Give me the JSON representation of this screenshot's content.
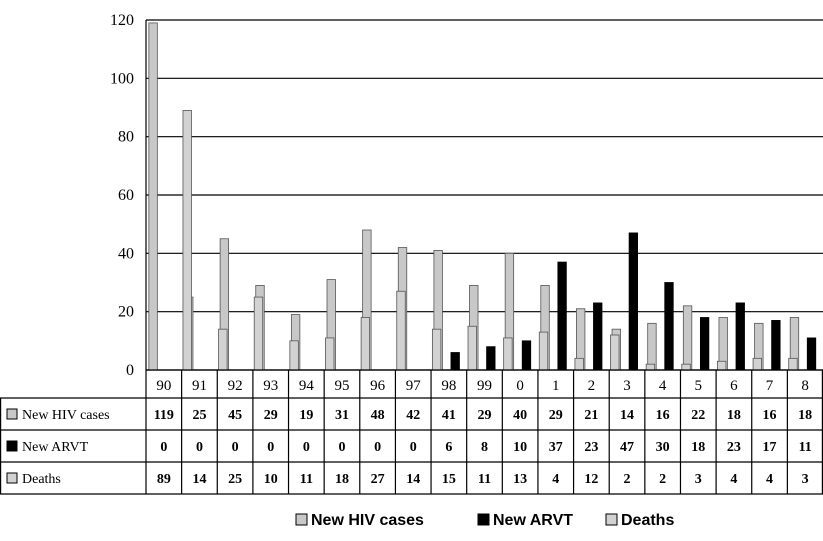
{
  "chart_data": {
    "type": "bar",
    "categories": [
      "90",
      "91",
      "92",
      "93",
      "94",
      "95",
      "96",
      "97",
      "98",
      "99",
      "0",
      "1",
      "2",
      "3",
      "4",
      "5",
      "6",
      "7",
      "8"
    ],
    "series": [
      {
        "name": "New HIV cases",
        "values": [
          119,
          25,
          45,
          29,
          19,
          31,
          48,
          42,
          41,
          29,
          40,
          29,
          21,
          14,
          16,
          22,
          18,
          16,
          18
        ]
      },
      {
        "name": "New ARVT",
        "values": [
          0,
          0,
          0,
          0,
          0,
          0,
          0,
          0,
          6,
          8,
          10,
          37,
          23,
          47,
          30,
          18,
          23,
          17,
          11
        ]
      },
      {
        "name": "Deaths",
        "values": [
          89,
          14,
          25,
          10,
          11,
          18,
          27,
          14,
          15,
          11,
          13,
          4,
          12,
          2,
          2,
          3,
          4,
          4,
          3
        ]
      }
    ],
    "yticks": [
      0,
      20,
      40,
      60,
      80,
      100,
      120
    ],
    "ylim": [
      0,
      120
    ],
    "grid": true,
    "legend": "bottom-center",
    "colors": {
      "New HIV cases": "#c8c8c8",
      "New ARVT": "#000000",
      "Deaths": "#d2d2d2",
      "grid": "#000000"
    }
  }
}
